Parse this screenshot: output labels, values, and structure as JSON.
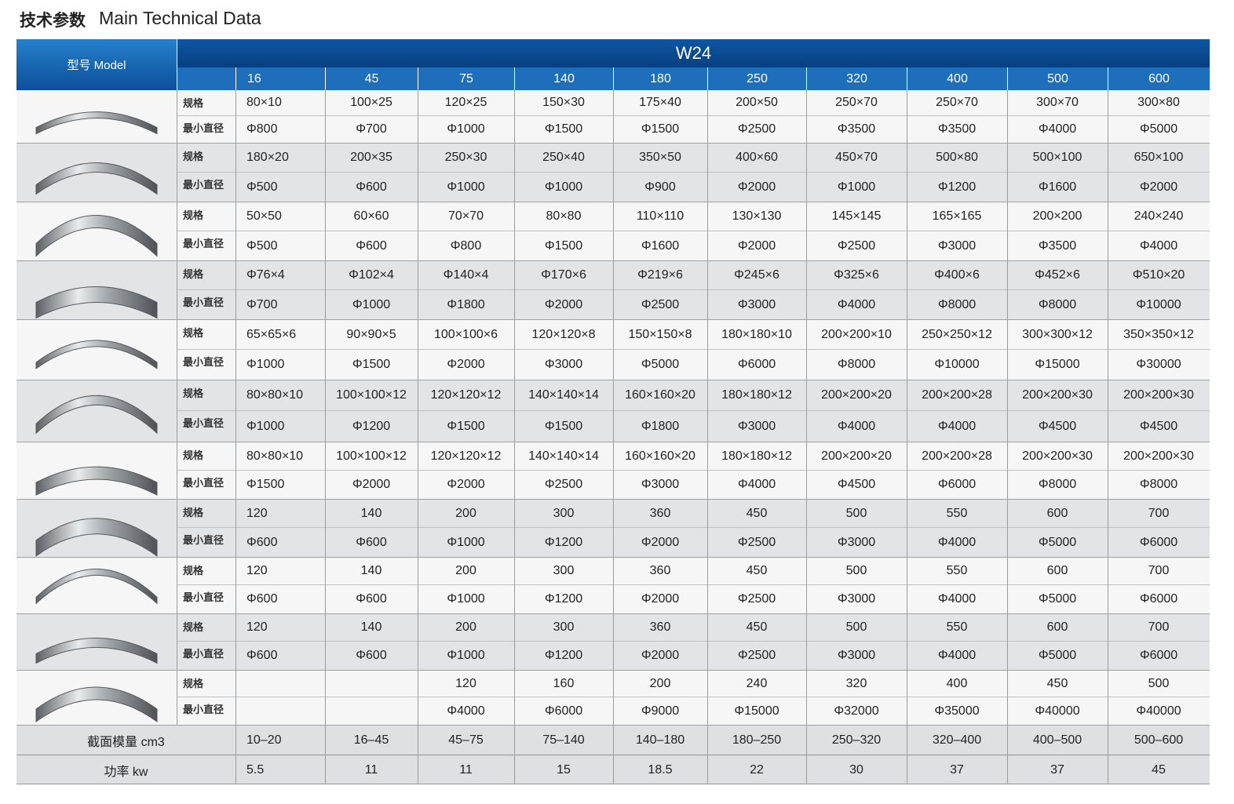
{
  "title": {
    "zh": "技术参数",
    "en": "Main Technical Data"
  },
  "header": {
    "model": "型号 Model",
    "series": "W24",
    "columns": [
      16,
      45,
      75,
      140,
      180,
      250,
      320,
      400,
      500,
      600
    ]
  },
  "row_labels": {
    "spec": "规格",
    "min_diameter": "最小直径"
  },
  "groups": [
    {
      "spec": [
        "80×10",
        "100×25",
        "120×25",
        "150×30",
        "175×40",
        "200×50",
        "250×70",
        "250×70",
        "300×70",
        "300×80"
      ],
      "min_diameter": [
        "Φ800",
        "Φ700",
        "Φ1000",
        "Φ1500",
        "Φ1500",
        "Φ2500",
        "Φ3500",
        "Φ3500",
        "Φ4000",
        "Φ5000"
      ]
    },
    {
      "spec": [
        "180×20",
        "200×35",
        "250×30",
        "250×40",
        "350×50",
        "400×60",
        "450×70",
        "500×80",
        "500×100",
        "650×100"
      ],
      "min_diameter": [
        "Φ500",
        "Φ600",
        "Φ1000",
        "Φ1000",
        "Φ900",
        "Φ2000",
        "Φ1000",
        "Φ1200",
        "Φ1600",
        "Φ2000"
      ]
    },
    {
      "spec": [
        "50×50",
        "60×60",
        "70×70",
        "80×80",
        "110×110",
        "130×130",
        "145×145",
        "165×165",
        "200×200",
        "240×240"
      ],
      "min_diameter": [
        "Φ500",
        "Φ600",
        "Φ800",
        "Φ1500",
        "Φ1600",
        "Φ2000",
        "Φ2500",
        "Φ3000",
        "Φ3500",
        "Φ4000"
      ]
    },
    {
      "spec": [
        "Φ76×4",
        "Φ102×4",
        "Φ140×4",
        "Φ170×6",
        "Φ219×6",
        "Φ245×6",
        "Φ325×6",
        "Φ400×6",
        "Φ452×6",
        "Φ510×20"
      ],
      "min_diameter": [
        "Φ700",
        "Φ1000",
        "Φ1800",
        "Φ2000",
        "Φ2500",
        "Φ3000",
        "Φ4000",
        "Φ8000",
        "Φ8000",
        "Φ10000"
      ]
    },
    {
      "spec": [
        "65×65×6",
        "90×90×5",
        "100×100×6",
        "120×120×8",
        "150×150×8",
        "180×180×10",
        "200×200×10",
        "250×250×12",
        "300×300×12",
        "350×350×12"
      ],
      "min_diameter": [
        "Φ1000",
        "Φ1500",
        "Φ2000",
        "Φ3000",
        "Φ5000",
        "Φ6000",
        "Φ8000",
        "Φ10000",
        "Φ15000",
        "Φ30000"
      ]
    },
    {
      "spec": [
        "80×80×10",
        "100×100×12",
        "120×120×12",
        "140×140×14",
        "160×160×20",
        "180×180×12",
        "200×200×20",
        "200×200×28",
        "200×200×30",
        "200×200×30"
      ],
      "min_diameter": [
        "Φ1000",
        "Φ1200",
        "Φ1500",
        "Φ1500",
        "Φ1800",
        "Φ3000",
        "Φ4000",
        "Φ4000",
        "Φ4500",
        "Φ4500"
      ]
    },
    {
      "spec": [
        "80×80×10",
        "100×100×12",
        "120×120×12",
        "140×140×14",
        "160×160×20",
        "180×180×12",
        "200×200×20",
        "200×200×28",
        "200×200×30",
        "200×200×30"
      ],
      "min_diameter": [
        "Φ1500",
        "Φ2000",
        "Φ2000",
        "Φ2500",
        "Φ3000",
        "Φ4000",
        "Φ4500",
        "Φ6000",
        "Φ8000",
        "Φ8000"
      ]
    },
    {
      "spec": [
        "120",
        "140",
        "200",
        "300",
        "360",
        "450",
        "500",
        "550",
        "600",
        "700"
      ],
      "min_diameter": [
        "Φ600",
        "Φ600",
        "Φ1000",
        "Φ1200",
        "Φ2000",
        "Φ2500",
        "Φ3000",
        "Φ4000",
        "Φ5000",
        "Φ6000"
      ]
    },
    {
      "spec": [
        "120",
        "140",
        "200",
        "300",
        "360",
        "450",
        "500",
        "550",
        "600",
        "700"
      ],
      "min_diameter": [
        "Φ600",
        "Φ600",
        "Φ1000",
        "Φ1200",
        "Φ2000",
        "Φ2500",
        "Φ3000",
        "Φ4000",
        "Φ5000",
        "Φ6000"
      ]
    },
    {
      "spec": [
        "120",
        "140",
        "200",
        "300",
        "360",
        "450",
        "500",
        "550",
        "600",
        "700"
      ],
      "min_diameter": [
        "Φ600",
        "Φ600",
        "Φ1000",
        "Φ1200",
        "Φ2000",
        "Φ2500",
        "Φ3000",
        "Φ4000",
        "Φ5000",
        "Φ6000"
      ]
    },
    {
      "spec": [
        null,
        null,
        "120",
        "160",
        "200",
        "240",
        "320",
        "400",
        "450",
        "500"
      ],
      "min_diameter": [
        null,
        null,
        "Φ4000",
        "Φ6000",
        "Φ9000",
        "Φ15000",
        "Φ32000",
        "Φ35000",
        "Φ40000",
        "Φ40000"
      ]
    }
  ],
  "footer_rows": [
    {
      "label": "截面模量 cm3",
      "values": [
        "10–20",
        "16–45",
        "45–75",
        "75–140",
        "140–180",
        "180–250",
        "250–320",
        "320–400",
        "400–500",
        "500–600"
      ]
    },
    {
      "label": "功率 kw",
      "values": [
        5.5,
        11,
        11,
        15,
        18.5,
        22,
        30,
        37,
        37,
        45
      ]
    }
  ]
}
